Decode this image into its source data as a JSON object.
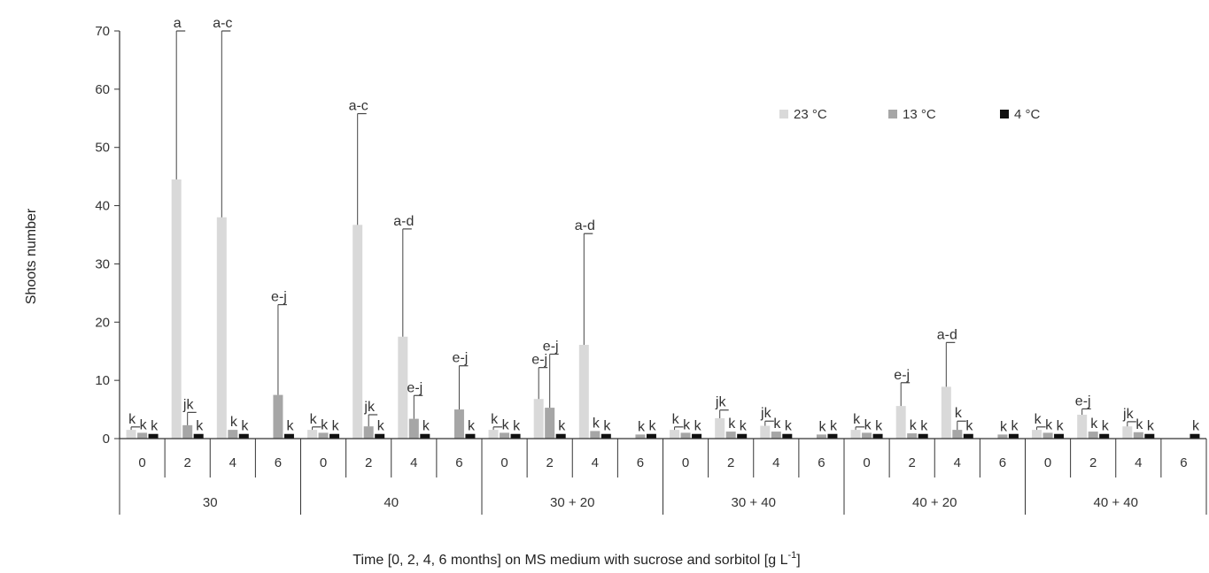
{
  "chart_data": {
    "type": "bar",
    "ylabel": "Shoots number",
    "xlabel_main": "Time [0, 2, 4, 6 months] on MS medium with sucrose and sorbitol [g L",
    "xlabel_sup": "-1",
    "xlabel_end": "]",
    "ylim": [
      0,
      70
    ],
    "yticks": [
      "0",
      "10",
      "20",
      "30",
      "40",
      "50",
      "60",
      "70"
    ],
    "grid": false,
    "legend_position": "top-right",
    "groups": [
      "30",
      "40",
      "30 + 20",
      "30 + 40",
      "40 + 20",
      "40 + 40"
    ],
    "months": [
      "0",
      "2",
      "4",
      "6"
    ],
    "series": [
      {
        "name": "23 °C",
        "color": "#d9d9d9",
        "values": [
          1.5,
          44.5,
          38,
          0,
          1.5,
          36.7,
          17.5,
          0,
          1.5,
          6.8,
          16.1,
          0,
          1.5,
          3.5,
          2.2,
          0,
          1.5,
          5.6,
          8.9,
          0,
          1.5,
          4.1,
          2.1,
          0
        ],
        "errors": [
          0.5,
          25.5,
          32,
          0,
          0.5,
          19.1,
          18.5,
          0,
          0.5,
          5.4,
          19.1,
          0,
          0.5,
          1.4,
          0.8,
          0,
          0.5,
          4.0,
          7.6,
          0,
          0.5,
          1.0,
          0.8,
          0
        ],
        "labels": [
          "k",
          "a",
          "a-c",
          "",
          "k",
          "a-c",
          "a-d",
          "",
          "k",
          "e-j",
          "a-d",
          "",
          "k",
          "jk",
          "jk",
          "",
          "k",
          "e-j",
          "a-d",
          "",
          "k",
          "e-j",
          "jk",
          ""
        ]
      },
      {
        "name": "13 °C",
        "color": "#a6a6a6",
        "values": [
          1,
          2.3,
          1.5,
          7.5,
          1,
          2.1,
          3.4,
          5.0,
          1,
          5.3,
          1.3,
          0.7,
          1,
          1.2,
          1.2,
          0.7,
          1,
          0.9,
          1.5,
          0.7,
          1,
          1.2,
          1.1,
          0
        ],
        "errors": [
          0,
          2.2,
          0,
          15.5,
          0,
          2.0,
          4.0,
          7.5,
          0,
          9.2,
          0,
          0,
          0,
          0,
          0,
          0,
          0,
          0,
          1.5,
          0,
          0,
          0,
          0,
          0
        ],
        "labels": [
          "k",
          "jk",
          "k",
          "e-j",
          "k",
          "jk",
          "e-j",
          "e-j",
          "k",
          "e-j",
          "k",
          "k",
          "k",
          "k",
          "k",
          "k",
          "k",
          "k",
          "k",
          "k",
          "k",
          "k",
          "k",
          ""
        ]
      },
      {
        "name": "4 °C",
        "color": "#111111",
        "values": [
          0.8,
          0.8,
          0.8,
          0.8,
          0.8,
          0.8,
          0.8,
          0.8,
          0.8,
          0.8,
          0.8,
          0.8,
          0.8,
          0.8,
          0.8,
          0.8,
          0.8,
          0.8,
          0.8,
          0.8,
          0.8,
          0.8,
          0.8,
          0.8
        ],
        "errors": [
          0,
          0,
          0,
          0,
          0,
          0,
          0,
          0,
          0,
          0,
          0,
          0,
          0,
          0,
          0,
          0,
          0,
          0,
          0,
          0,
          0,
          0,
          0,
          0
        ],
        "labels": [
          "k",
          "k",
          "k",
          "k",
          "k",
          "k",
          "k",
          "k",
          "k",
          "k",
          "k",
          "k",
          "k",
          "k",
          "k",
          "k",
          "k",
          "k",
          "k",
          "k",
          "k",
          "k",
          "k",
          "k"
        ]
      }
    ]
  }
}
